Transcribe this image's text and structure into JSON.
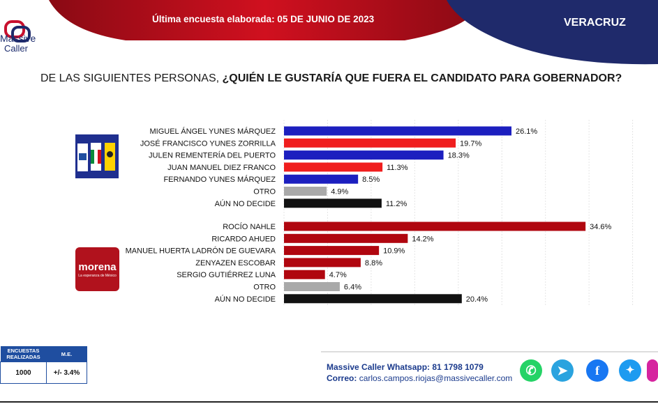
{
  "header": {
    "date_line": "Última encuesta elaborada: 05 DE JUNIO DE 2023",
    "state": "VERACRUZ",
    "logo_line1": "Massive",
    "logo_line2": "Caller"
  },
  "question": {
    "prefix": "DE LAS SIGUIENTES PERSONAS, ",
    "emphasis": "¿QUIÉN LE GUSTARÍA QUE FUERA EL CANDIDATO PARA GOBERNADOR?"
  },
  "party_logos": {
    "coalition": {
      "labels": [
        "PAN",
        "PRI",
        "PRD"
      ]
    },
    "morena": {
      "word": "morena",
      "tagline": "La esperanza de México"
    }
  },
  "chart_data": [
    {
      "type": "bar",
      "orientation": "horizontal",
      "group": "PAN-PRI-PRD",
      "categories": [
        "MIGUEL ÁNGEL YUNES MÁRQUEZ",
        "JOSÉ FRANCISCO YUNES ZORRILLA",
        "JULEN REMENTERÍA DEL PUERTO",
        "JUAN MANUEL DIEZ FRANCO",
        "FERNANDO YUNES MÁRQUEZ",
        "OTRO",
        "AÚN NO DECIDE"
      ],
      "values": [
        26.1,
        19.7,
        18.3,
        11.3,
        8.5,
        4.9,
        11.2
      ],
      "labels": [
        "26.1%",
        "19.7%",
        "18.3%",
        "11.3%",
        "8.5%",
        "4.9%",
        "11.2%"
      ],
      "colors": [
        "#1c1fbf",
        "#f01e1e",
        "#1c1fbf",
        "#f01e1e",
        "#1c1fbf",
        "#a9a9a9",
        "#111111"
      ],
      "xlim": [
        0,
        40
      ]
    },
    {
      "type": "bar",
      "orientation": "horizontal",
      "group": "MORENA",
      "categories": [
        "ROCÍO NAHLE",
        "RICARDO AHUED",
        "MANUEL HUERTA LADRÓN DE GUEVARA",
        "ZENYAZEN ESCOBAR",
        "SERGIO GUTIÉRREZ LUNA",
        "OTRO",
        "AÚN NO DECIDE"
      ],
      "values": [
        34.6,
        14.2,
        10.9,
        8.8,
        4.7,
        6.4,
        20.4
      ],
      "labels": [
        "34.6%",
        "14.2%",
        "10.9%",
        "8.8%",
        "4.7%",
        "6.4%",
        "20.4%"
      ],
      "colors": [
        "#b0060f",
        "#b0060f",
        "#b0060f",
        "#b0060f",
        "#b0060f",
        "#a9a9a9",
        "#111111"
      ],
      "xlim": [
        0,
        40
      ]
    }
  ],
  "survey_table": {
    "headers": [
      "ENCUESTAS REALIZADAS",
      "M.E."
    ],
    "values": [
      "1000",
      "+/- 3.4%"
    ]
  },
  "contact": {
    "whatsapp": "Massive Caller Whatsapp: 81 1798 1079",
    "email_label": "Correo:",
    "email": "carlos.campos.riojas@massivecaller.com"
  },
  "social_icons": [
    "whatsapp-icon",
    "telegram-icon",
    "facebook-icon",
    "twitter-icon",
    "instagram-icon"
  ],
  "colors": {
    "header_red": "#c8102e",
    "header_navy": "#1f2a6b",
    "accent_blue": "#1a3a8c"
  }
}
